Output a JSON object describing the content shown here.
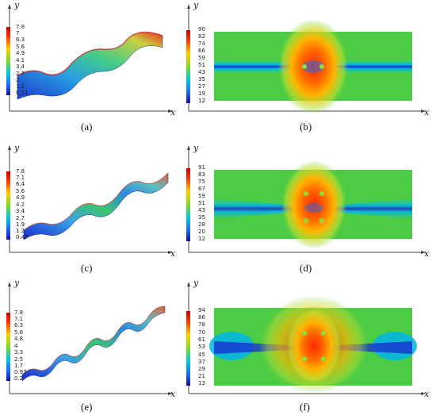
{
  "axes": {
    "x": "x",
    "y": "y"
  },
  "captions": [
    "(a)",
    "(b)",
    "(c)",
    "(d)",
    "(e)",
    "(f)"
  ],
  "colorbars": {
    "a": [
      "7.8",
      "7",
      "6.3",
      "5.6",
      "4.9",
      "4.1",
      "3.4",
      "2.7",
      "2",
      "1.2",
      "0.51"
    ],
    "b": [
      "90",
      "82",
      "74",
      "66",
      "59",
      "51",
      "43",
      "35",
      "27",
      "19",
      "12"
    ],
    "c": [
      "7.8",
      "7.1",
      "6.4",
      "5.6",
      "4.9",
      "4.2",
      "3.4",
      "2.7",
      "1.9",
      "1.2",
      "0.47"
    ],
    "d": [
      "91",
      "83",
      "75",
      "67",
      "59",
      "51",
      "43",
      "35",
      "28",
      "20",
      "12"
    ],
    "e": [
      "7.8",
      "7.1",
      "6.3",
      "5.6",
      "4.8",
      "4",
      "3.3",
      "2.5",
      "1.7",
      "0.97",
      "0.2"
    ],
    "f": [
      "94",
      "86",
      "78",
      "70",
      "61",
      "53",
      "45",
      "37",
      "29",
      "21",
      "13"
    ]
  },
  "colors": {
    "min": "#1a1acc",
    "low": "#00c8ff",
    "mid": "#44d044",
    "high": "#ffe000",
    "max": "#e02020"
  }
}
